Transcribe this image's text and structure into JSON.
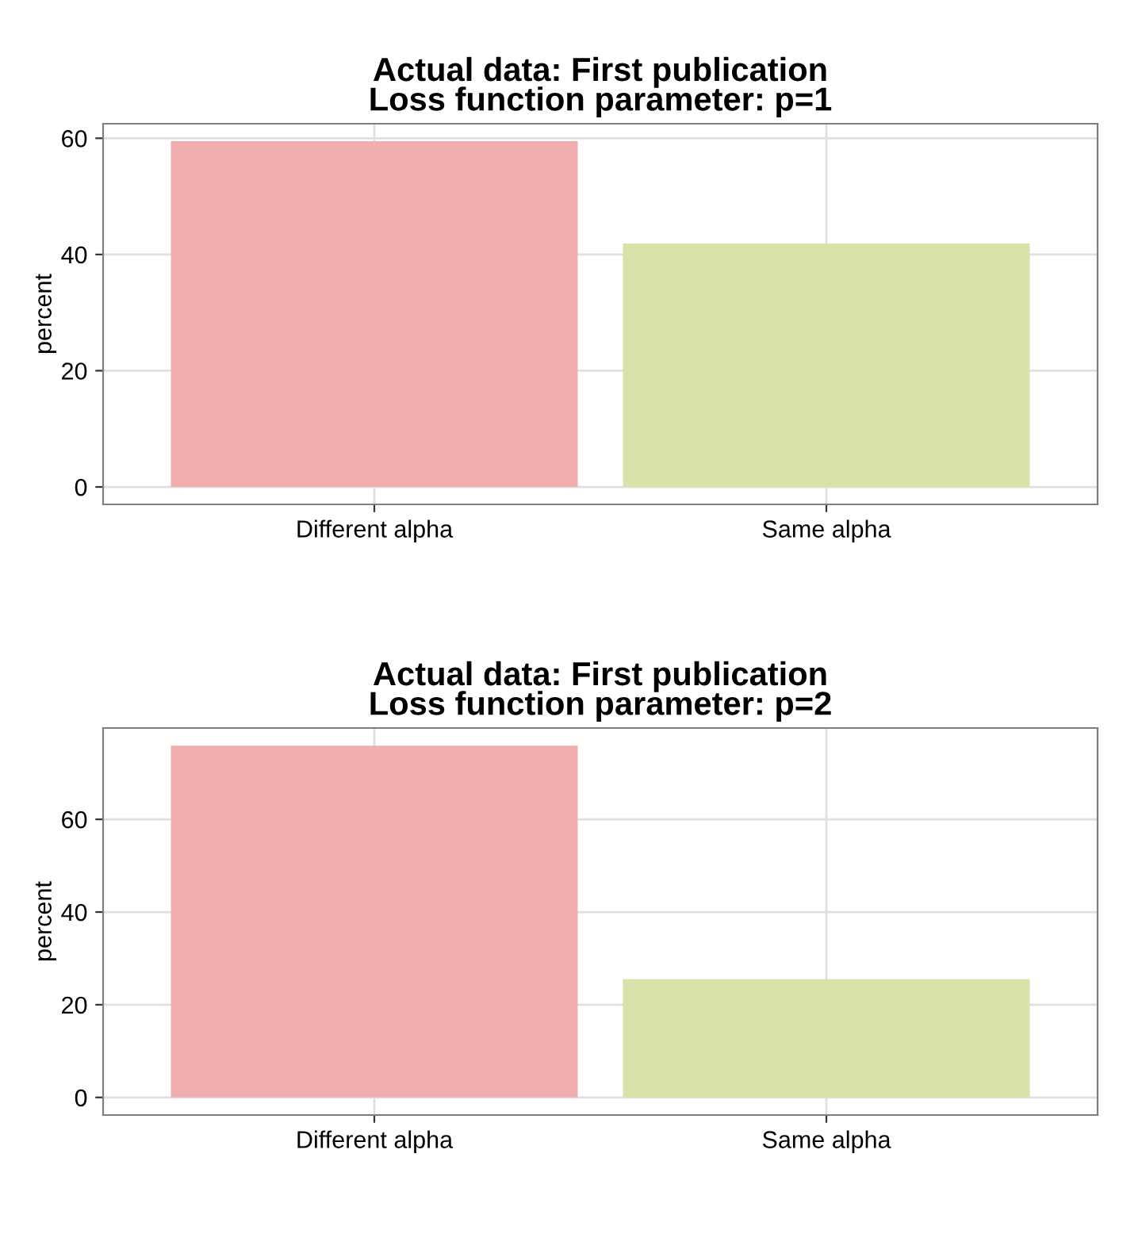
{
  "chart_data": [
    {
      "type": "bar",
      "title": "Actual data: First publication\nLoss function parameter: p=1",
      "ylabel": "percent",
      "categories": [
        "Different alpha",
        "Same alpha"
      ],
      "values": [
        59.5,
        41.9
      ],
      "colors": [
        "#f1aeae",
        "#d8e3aa"
      ],
      "ylim": [
        -3,
        62.5
      ],
      "yticks": [
        0,
        20,
        40,
        60
      ],
      "grid": true,
      "legend": false
    },
    {
      "type": "bar",
      "title": "Actual data: First publication\nLoss function parameter: p=2",
      "ylabel": "percent",
      "categories": [
        "Different alpha",
        "Same alpha"
      ],
      "values": [
        75.9,
        25.5
      ],
      "colors": [
        "#f1aeae",
        "#d8e3aa"
      ],
      "ylim": [
        -3.8,
        79.7
      ],
      "yticks": [
        0,
        20,
        40,
        60
      ],
      "grid": true,
      "legend": false
    }
  ]
}
